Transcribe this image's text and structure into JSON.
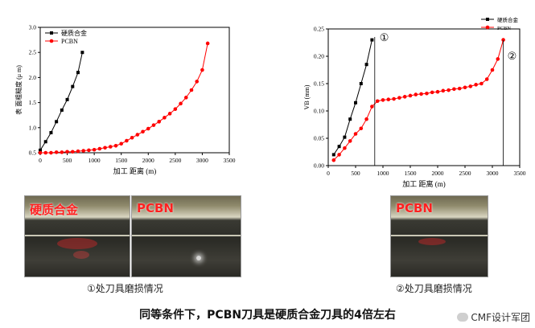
{
  "chart_data": [
    {
      "type": "line",
      "xlabel": "加工 距离 (m)",
      "ylabel": "表 面粗糙度 (μ m)",
      "xlim": [
        0,
        3500
      ],
      "ylim": [
        0.5,
        3.0
      ],
      "xticks": [
        "0",
        "500",
        "1000",
        "1500",
        "2000",
        "2500",
        "3000",
        "3500"
      ],
      "yticks": [
        "0.5",
        "1.0",
        "1.5",
        "2.0",
        "2.5",
        "3.0"
      ],
      "legend_position": "top-left",
      "grid": false,
      "series": [
        {
          "name": "硬质合金",
          "color": "#000000",
          "marker": "square",
          "x": [
            0,
            100,
            200,
            300,
            400,
            500,
            600,
            700,
            780
          ],
          "y": [
            0.55,
            0.72,
            0.9,
            1.12,
            1.35,
            1.56,
            1.82,
            2.1,
            2.5
          ]
        },
        {
          "name": "PCBN",
          "color": "#ff0000",
          "marker": "circle",
          "x": [
            0,
            100,
            200,
            300,
            400,
            500,
            600,
            700,
            800,
            900,
            1000,
            1100,
            1200,
            1300,
            1400,
            1500,
            1600,
            1700,
            1800,
            1900,
            2000,
            2100,
            2200,
            2300,
            2400,
            2500,
            2600,
            2700,
            2800,
            2900,
            3000,
            3100
          ],
          "y": [
            0.5,
            0.5,
            0.5,
            0.51,
            0.51,
            0.52,
            0.52,
            0.53,
            0.54,
            0.55,
            0.56,
            0.58,
            0.6,
            0.62,
            0.64,
            0.68,
            0.74,
            0.8,
            0.86,
            0.92,
            0.98,
            1.05,
            1.12,
            1.2,
            1.28,
            1.37,
            1.48,
            1.6,
            1.75,
            1.92,
            2.15,
            2.68
          ]
        }
      ]
    },
    {
      "type": "line",
      "xlabel": "加工 距离 (m)",
      "ylabel": "VB (mm)",
      "xlim": [
        0,
        3500
      ],
      "ylim": [
        0,
        0.25
      ],
      "xticks": [
        "0",
        "500",
        "1000",
        "1500",
        "2000",
        "2500",
        "3000",
        "3500"
      ],
      "yticks": [
        "0.00",
        "0.05",
        "0.10",
        "0.15",
        "0.20",
        "0.25"
      ],
      "legend_position": "top-right",
      "grid": false,
      "annotations": [
        "①",
        "②"
      ],
      "series": [
        {
          "name": "硬质合金",
          "color": "#000000",
          "marker": "square",
          "x": [
            100,
            200,
            300,
            400,
            500,
            600,
            700,
            800
          ],
          "y": [
            0.02,
            0.035,
            0.052,
            0.085,
            0.115,
            0.15,
            0.185,
            0.23
          ]
        },
        {
          "name": "PCBN",
          "color": "#ff0000",
          "marker": "circle",
          "x": [
            100,
            200,
            300,
            400,
            500,
            600,
            700,
            800,
            900,
            1000,
            1100,
            1200,
            1300,
            1400,
            1500,
            1600,
            1700,
            1800,
            1900,
            2000,
            2100,
            2200,
            2300,
            2400,
            2500,
            2600,
            2700,
            2800,
            2900,
            3000,
            3100,
            3200
          ],
          "y": [
            0.01,
            0.02,
            0.032,
            0.045,
            0.058,
            0.068,
            0.085,
            0.108,
            0.118,
            0.12,
            0.121,
            0.122,
            0.124,
            0.126,
            0.128,
            0.13,
            0.131,
            0.132,
            0.134,
            0.135,
            0.137,
            0.138,
            0.14,
            0.141,
            0.143,
            0.145,
            0.148,
            0.15,
            0.158,
            0.175,
            0.195,
            0.23
          ]
        }
      ]
    }
  ],
  "photos": {
    "left_carbide_label": "硬质合金",
    "left_pcbn_label": "PCBN",
    "right_pcbn_label": "PCBN"
  },
  "captions": {
    "left": "①处刀具磨损情况",
    "right": "②处刀具磨损情况"
  },
  "summary": "同等条件下，PCBN刀具是硬质合金刀具的4倍左右",
  "brand": "CMF设计军团"
}
